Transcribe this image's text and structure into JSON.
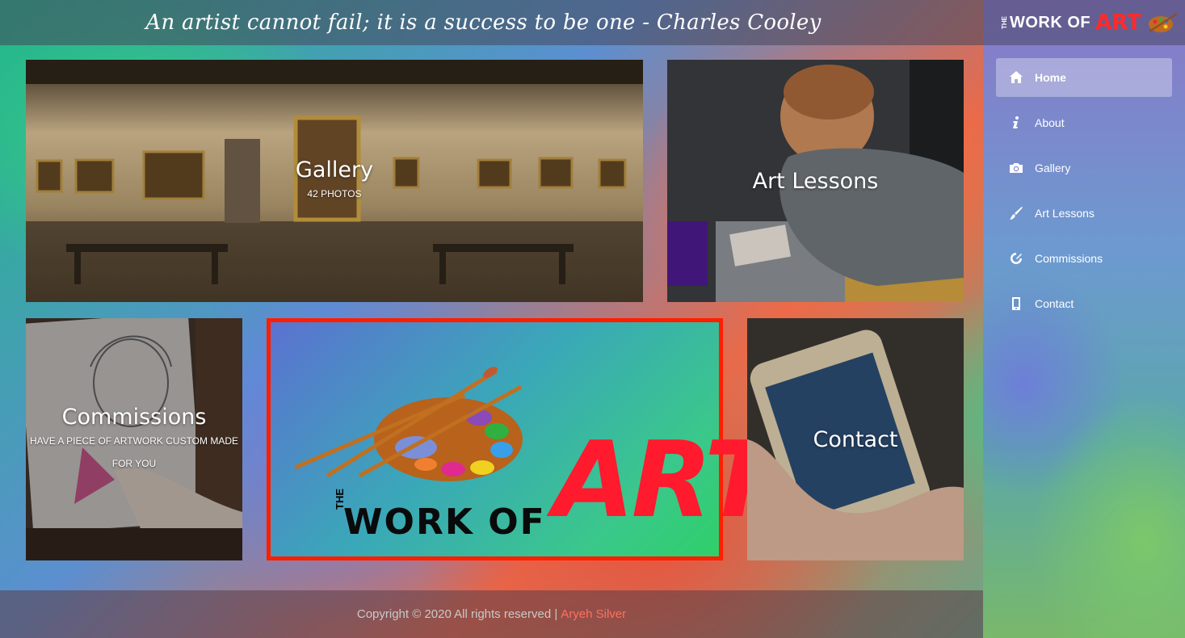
{
  "header": {
    "quote": "An artist cannot fail; it is a success to be one - Charles Cooley"
  },
  "sidebar": {
    "brand": {
      "the": "THE",
      "work": "WORK OF",
      "art": "ART"
    },
    "items": [
      {
        "label": "Home",
        "icon": "home-icon",
        "active": true
      },
      {
        "label": "About",
        "icon": "info-icon"
      },
      {
        "label": "Gallery",
        "icon": "camera-icon"
      },
      {
        "label": "Art Lessons",
        "icon": "brush-icon"
      },
      {
        "label": "Commissions",
        "icon": "commission-icon"
      },
      {
        "label": "Contact",
        "icon": "phone-icon"
      }
    ]
  },
  "tiles": {
    "gallery": {
      "title": "Gallery",
      "subtitle": "42 PHOTOS"
    },
    "lessons": {
      "title": "Art Lessons"
    },
    "commissions": {
      "title": "Commissions",
      "subtitle": "HAVE A PIECE OF ARTWORK CUSTOM MADE FOR YOU"
    },
    "logo": {
      "the": "THE",
      "work": "WORK OF",
      "art": "ART"
    },
    "contact": {
      "title": "Contact"
    }
  },
  "footer": {
    "text": "Copyright © 2020 All rights reserved |",
    "author": "Aryeh Silver"
  },
  "colors": {
    "accent_red": "#ff1e00",
    "footer_link": "#ff7060"
  }
}
